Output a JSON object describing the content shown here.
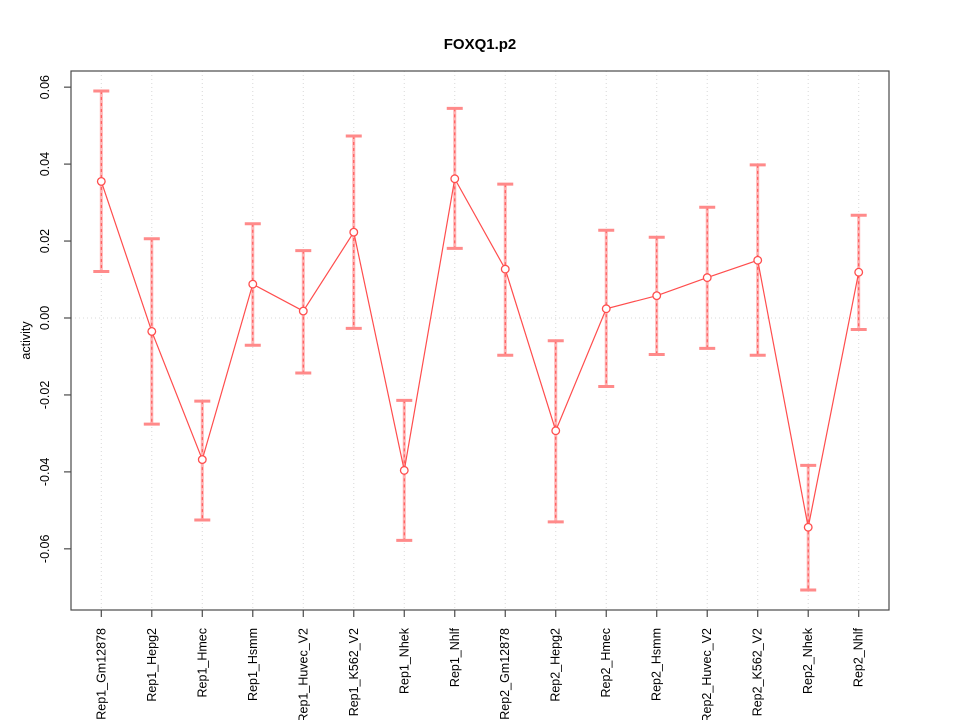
{
  "chart_data": {
    "type": "line",
    "subtype": "points-with-error-bars",
    "title": "FOXQ1.p2",
    "xlabel": "",
    "ylabel": "activity",
    "legend": "none",
    "grid": {
      "vertical_dotted_per_category": true,
      "horizontal_dotted_at_zero": true
    },
    "ylim": [
      -0.0759,
      0.0642
    ],
    "yticks": [
      {
        "value": -0.06,
        "label": "-0.06"
      },
      {
        "value": -0.04,
        "label": "-0.04"
      },
      {
        "value": -0.02,
        "label": "-0.02"
      },
      {
        "value": 0.0,
        "label": "0.00"
      },
      {
        "value": 0.02,
        "label": "0.02"
      },
      {
        "value": 0.04,
        "label": "0.04"
      },
      {
        "value": 0.06,
        "label": "0.06"
      }
    ],
    "categories": [
      "Rep1_Gm12878",
      "Rep1_Hepg2",
      "Rep1_Hmec",
      "Rep1_Hsmm",
      "Rep1_Huvec_V2",
      "Rep1_K562_V2",
      "Rep1_Nhek",
      "Rep1_Nhlf",
      "Rep2_Gm12878",
      "Rep2_Hepg2",
      "Rep2_Hmec",
      "Rep2_Hsmm",
      "Rep2_Huvec_V2",
      "Rep2_K562_V2",
      "Rep2_Nhek",
      "Rep2_Nhlf"
    ],
    "series": [
      {
        "name": "activity",
        "values": [
          0.0355,
          -0.0035,
          -0.0368,
          0.0088,
          0.0018,
          0.0223,
          -0.0396,
          0.0362,
          0.0127,
          -0.0293,
          0.0024,
          0.0058,
          0.0105,
          0.015,
          -0.0544,
          0.0119
        ],
        "upper": [
          0.059,
          0.0206,
          -0.0216,
          0.0245,
          0.0175,
          0.0473,
          -0.0214,
          0.0545,
          0.0348,
          -0.0059,
          0.0228,
          0.021,
          0.0288,
          0.0398,
          -0.0383,
          0.0267
        ],
        "lower": [
          0.0121,
          -0.0276,
          -0.0525,
          -0.0071,
          -0.0143,
          -0.0027,
          -0.0578,
          0.0181,
          -0.0097,
          -0.053,
          -0.0178,
          -0.0095,
          -0.0079,
          -0.0097,
          -0.0707,
          -0.003
        ]
      }
    ],
    "colors": {
      "series": "#ff4d4d",
      "error_bar_fill": "#ffb3b3",
      "error_bar_cap": "#ff8a8a",
      "gridline": "#d8d8d8",
      "axis": "#4a4a4a",
      "text": "#000000",
      "background": "#ffffff"
    }
  }
}
